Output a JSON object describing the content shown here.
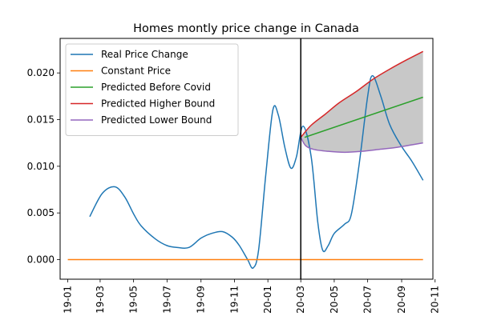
{
  "chart_data": {
    "type": "line",
    "title": "Homes montly price change in Canada",
    "xlabel": "",
    "ylabel": "",
    "xlim": [
      "2018-12-18",
      "2020-10-28"
    ],
    "ylim": [
      -0.0021,
      0.0237
    ],
    "x_ticks": [
      "19-01",
      "19-03",
      "19-05",
      "19-07",
      "19-09",
      "19-11",
      "20-01",
      "20-03",
      "20-05",
      "20-07",
      "20-09",
      "20-11"
    ],
    "x_tick_dates": [
      "2019-01-01",
      "2019-03-01",
      "2019-05-01",
      "2019-07-01",
      "2019-09-01",
      "2019-11-01",
      "2020-01-01",
      "2020-03-01",
      "2020-05-01",
      "2020-07-01",
      "2020-09-01",
      "2020-11-01"
    ],
    "y_ticks": [
      0.0,
      0.005,
      0.01,
      0.015,
      0.02
    ],
    "y_tick_labels": [
      "0.000",
      "0.005",
      "0.010",
      "0.015",
      "0.020"
    ],
    "vertical_line": "2020-03-01",
    "legend_position": "top-left",
    "series": [
      {
        "name": "Real Price Change",
        "color": "#1f77b4",
        "points": [
          [
            "2019-02-10",
            0.0046
          ],
          [
            "2019-03-05",
            0.0071
          ],
          [
            "2019-03-28",
            0.0078
          ],
          [
            "2019-04-15",
            0.0067
          ],
          [
            "2019-05-01",
            0.0049
          ],
          [
            "2019-05-15",
            0.0036
          ],
          [
            "2019-06-10",
            0.0022
          ],
          [
            "2019-07-01",
            0.0015
          ],
          [
            "2019-07-20",
            0.0013
          ],
          [
            "2019-08-10",
            0.0013
          ],
          [
            "2019-09-01",
            0.0023
          ],
          [
            "2019-09-20",
            0.0028
          ],
          [
            "2019-10-10",
            0.003
          ],
          [
            "2019-10-28",
            0.0024
          ],
          [
            "2019-11-10",
            0.0015
          ],
          [
            "2019-11-25",
            0.0
          ],
          [
            "2019-12-05",
            -0.0009
          ],
          [
            "2019-12-15",
            0.001
          ],
          [
            "2019-12-28",
            0.009
          ],
          [
            "2020-01-10",
            0.016
          ],
          [
            "2020-01-20",
            0.0155
          ],
          [
            "2020-02-01",
            0.012
          ],
          [
            "2020-02-12",
            0.0098
          ],
          [
            "2020-02-22",
            0.011
          ],
          [
            "2020-03-05",
            0.0143
          ],
          [
            "2020-03-20",
            0.011
          ],
          [
            "2020-04-01",
            0.004
          ],
          [
            "2020-04-10",
            0.001
          ],
          [
            "2020-04-20",
            0.0015
          ],
          [
            "2020-05-01",
            0.0028
          ],
          [
            "2020-05-20",
            0.0038
          ],
          [
            "2020-06-01",
            0.0048
          ],
          [
            "2020-06-15",
            0.01
          ],
          [
            "2020-07-01",
            0.0175
          ],
          [
            "2020-07-10",
            0.0197
          ],
          [
            "2020-07-25",
            0.0175
          ],
          [
            "2020-08-10",
            0.0145
          ],
          [
            "2020-08-30",
            0.0123
          ],
          [
            "2020-09-20",
            0.0105
          ],
          [
            "2020-10-10",
            0.0085
          ]
        ]
      },
      {
        "name": "Constant Price",
        "color": "#ff7f0e",
        "points": [
          [
            "2019-01-01",
            0.0
          ],
          [
            "2020-10-10",
            0.0
          ]
        ]
      },
      {
        "name": "Predicted Before Covid",
        "color": "#2ca02c",
        "points": [
          [
            "2020-03-08",
            0.0131
          ],
          [
            "2020-10-10",
            0.0174
          ]
        ]
      },
      {
        "name": "Predicted Higher Bound",
        "color": "#d62728",
        "points": [
          [
            "2020-03-01",
            0.0131
          ],
          [
            "2020-03-20",
            0.0144
          ],
          [
            "2020-04-15",
            0.0156
          ],
          [
            "2020-05-10",
            0.0168
          ],
          [
            "2020-06-10",
            0.018
          ],
          [
            "2020-07-10",
            0.0193
          ],
          [
            "2020-08-10",
            0.0204
          ],
          [
            "2020-09-10",
            0.0214
          ],
          [
            "2020-10-10",
            0.0223
          ]
        ]
      },
      {
        "name": "Predicted Lower Bound",
        "color": "#9467bd",
        "points": [
          [
            "2020-03-01",
            0.0131
          ],
          [
            "2020-03-10",
            0.0122
          ],
          [
            "2020-03-25",
            0.0118
          ],
          [
            "2020-04-20",
            0.0116
          ],
          [
            "2020-05-20",
            0.0115
          ],
          [
            "2020-06-20",
            0.0116
          ],
          [
            "2020-07-20",
            0.0118
          ],
          [
            "2020-08-20",
            0.012
          ],
          [
            "2020-09-20",
            0.0123
          ],
          [
            "2020-10-10",
            0.0125
          ]
        ]
      }
    ],
    "band": {
      "between": [
        "Predicted Lower Bound",
        "Predicted Higher Bound"
      ],
      "color": "#c8c8c8"
    }
  }
}
